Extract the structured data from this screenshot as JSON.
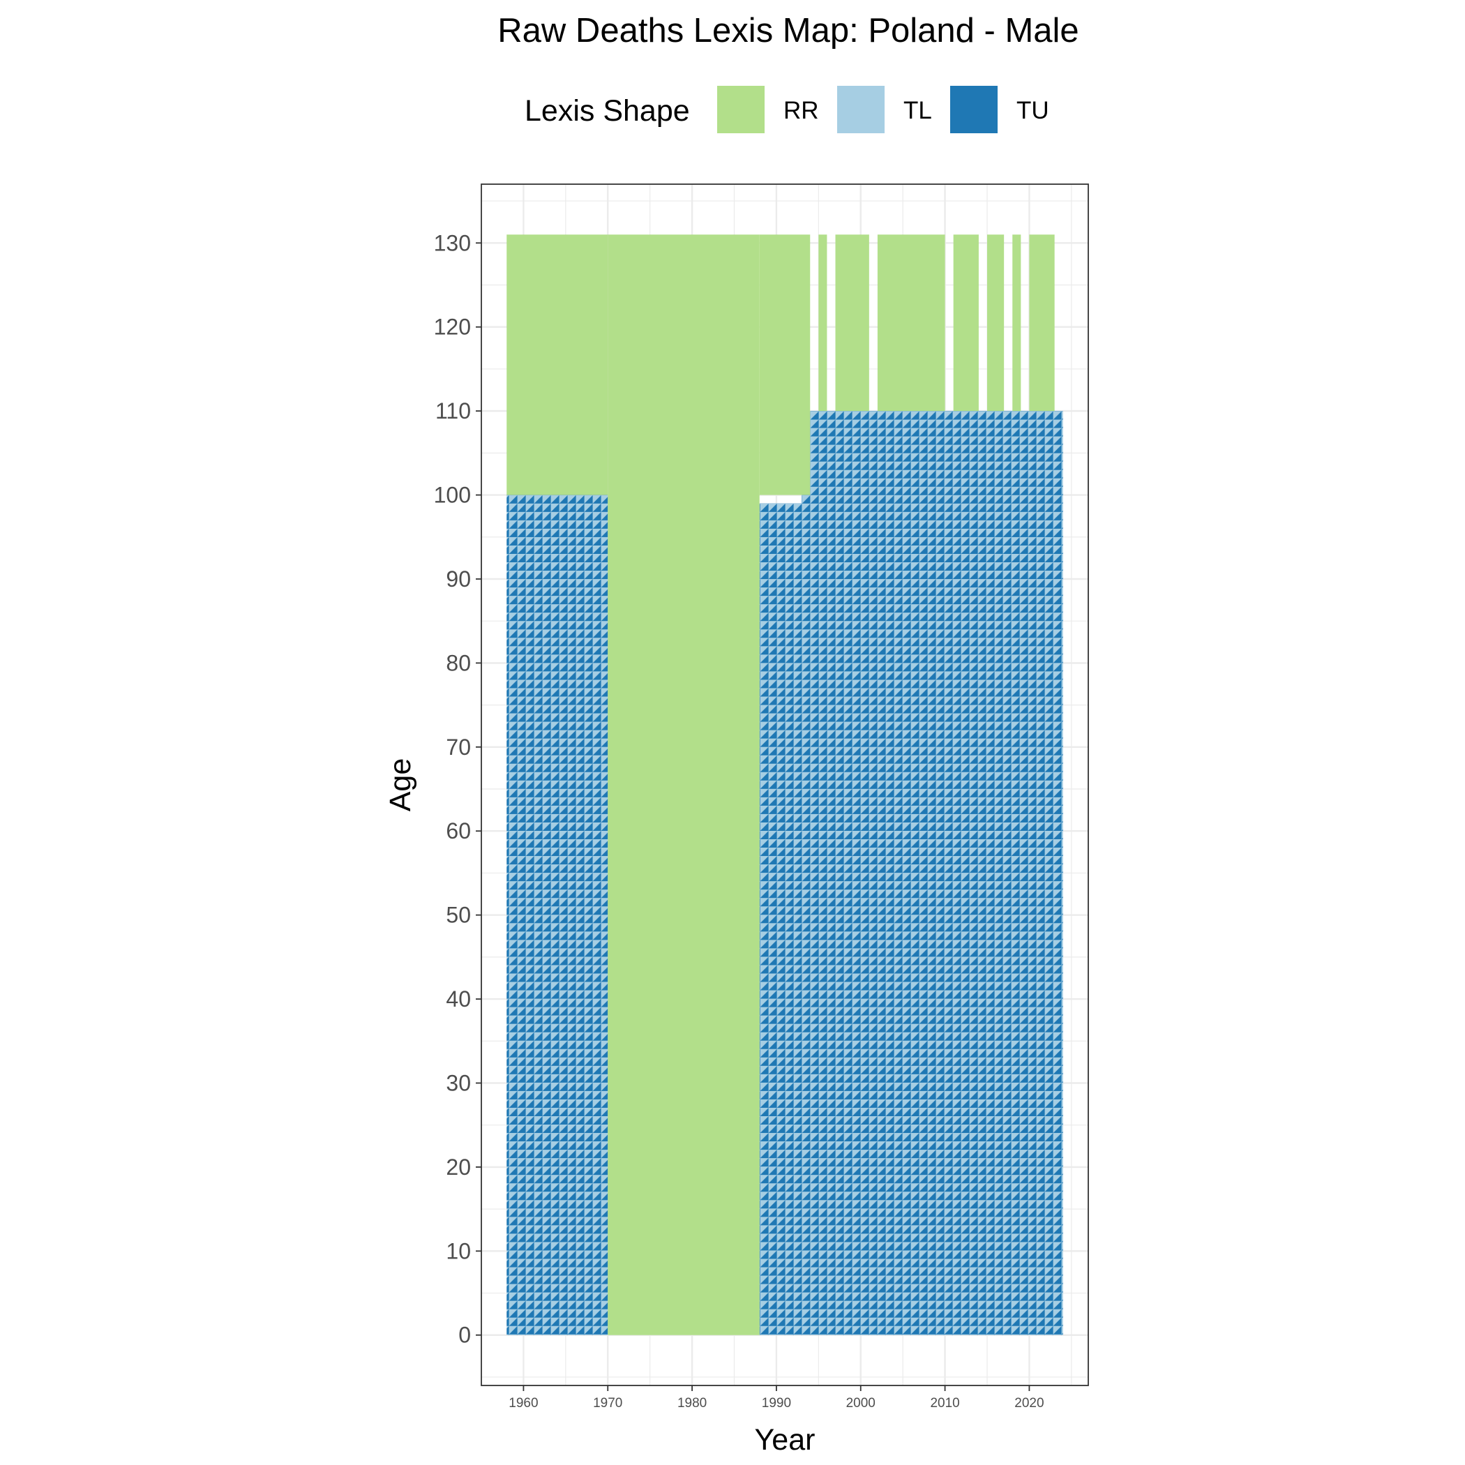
{
  "chart_data": {
    "type": "heatmap",
    "title": "Raw Deaths Lexis Map: Poland - Male",
    "xlabel": "Year",
    "ylabel": "Age",
    "xlim": [
      1955,
      2027
    ],
    "ylim": [
      -6,
      137
    ],
    "x_ticks": [
      1960,
      1970,
      1980,
      1990,
      2000,
      2010,
      2020
    ],
    "y_ticks": [
      0,
      10,
      20,
      30,
      40,
      50,
      60,
      70,
      80,
      90,
      100,
      110,
      120,
      130
    ],
    "grid": true,
    "legend": {
      "title": "Lexis Shape",
      "position": "top",
      "entries": [
        {
          "key": "RR",
          "label": "RR",
          "color": "#b2df8a"
        },
        {
          "key": "TL",
          "label": "TL",
          "color": "#a6cee3"
        },
        {
          "key": "TU",
          "label": "TU",
          "color": "#1f78b4"
        }
      ]
    },
    "rr_blocks": [
      {
        "year_from": 1958,
        "year_to": 1970,
        "age_from": 100,
        "age_to": 131
      },
      {
        "year_from": 1970,
        "year_to": 1988,
        "age_from": 0,
        "age_to": 131
      },
      {
        "year_from": 1988,
        "year_to": 1994,
        "age_from": 100,
        "age_to": 131
      },
      {
        "year_from": 1995,
        "year_to": 1996,
        "age_from": 110,
        "age_to": 131
      },
      {
        "year_from": 1997,
        "year_to": 2001,
        "age_from": 110,
        "age_to": 131
      },
      {
        "year_from": 2002,
        "year_to": 2010,
        "age_from": 110,
        "age_to": 131
      },
      {
        "year_from": 2011,
        "year_to": 2014,
        "age_from": 110,
        "age_to": 131
      },
      {
        "year_from": 2015,
        "year_to": 2017,
        "age_from": 110,
        "age_to": 131
      },
      {
        "year_from": 2018,
        "year_to": 2019,
        "age_from": 110,
        "age_to": 131
      },
      {
        "year_from": 2020,
        "year_to": 2023,
        "age_from": 110,
        "age_to": 131
      }
    ],
    "triangle_blocks": [
      {
        "year_from": 1958,
        "year_to": 1970,
        "age_from": 0,
        "age_to": 100,
        "shapes": [
          "TL",
          "TU"
        ]
      },
      {
        "year_from": 1988,
        "year_to": 1993,
        "age_from": 0,
        "age_to": 99,
        "shapes": [
          "TL",
          "TU"
        ]
      },
      {
        "year_from": 1993,
        "year_to": 1994,
        "age_from": 0,
        "age_to": 100,
        "shapes": [
          "TL",
          "TU"
        ]
      },
      {
        "year_from": 1994,
        "year_to": 2024,
        "age_from": 0,
        "age_to": 110,
        "shapes": [
          "TL",
          "TU"
        ]
      }
    ]
  }
}
